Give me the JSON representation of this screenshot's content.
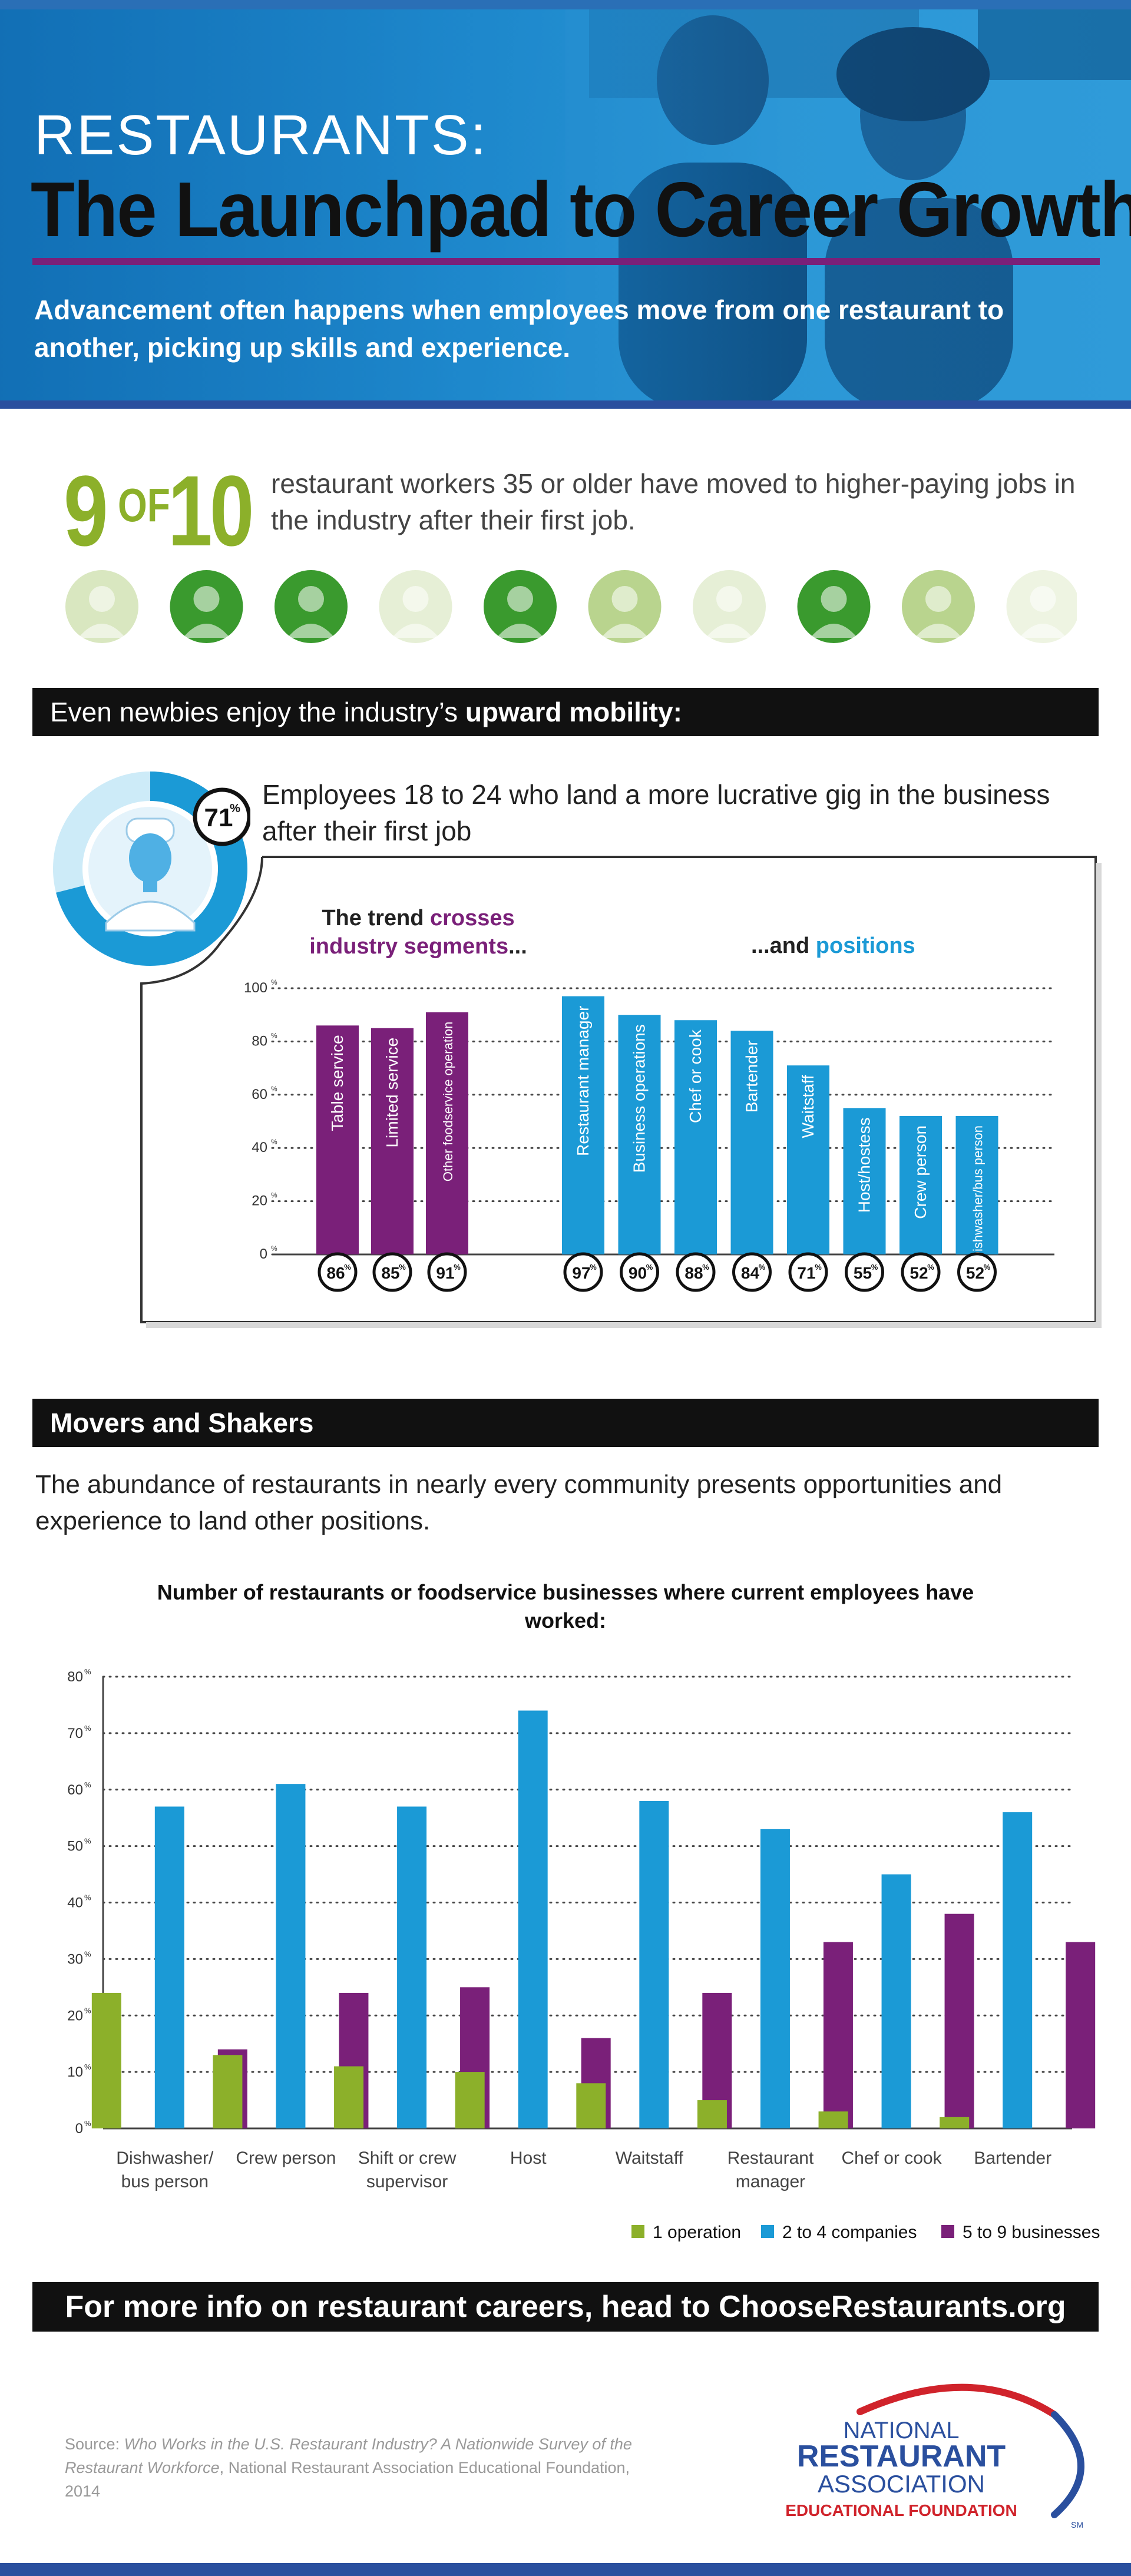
{
  "hero": {
    "pre_title": "RESTAURANTS:",
    "title": "The Launchpad to Career Growth",
    "subtitle": "Advancement often happens when employees move from one restaurant to another, picking up skills and experience."
  },
  "stat_nine": {
    "big1": "9",
    "of": "OF",
    "big2": "10",
    "text": "restaurant workers 35 or older have moved to higher-paying jobs in the industry after their first job.",
    "avatar_count": 10
  },
  "section1": {
    "header_plain": "Even newbies enjoy the industry’s ",
    "header_bold": "upward mobility:",
    "donut_value": 71,
    "donut_label": "71",
    "donut_unit": "%",
    "text": "Employees 18 to 24 who land a more lucrative gig in the business after their first job",
    "trend_left_pre": "The trend ",
    "trend_left_hl": "crosses",
    "trend_left_hl2": "industry segments",
    "trend_left_post": "...",
    "trend_right_pre": "...and ",
    "trend_right_hl": "positions"
  },
  "section2": {
    "header": "Movers and Shakers",
    "text": "The abundance of restaurants in nearly every community presents opportunities and experience to land other positions.",
    "chart_title": "Number of restaurants or foodservice businesses where current employees have worked:"
  },
  "footer": {
    "cta": "For more info on restaurant careers, head to ChooseRestaurants.org",
    "source_pre": "Source: ",
    "source_title": "Who Works in the U.S. Restaurant Industry? A Nationwide Survey of the Restaurant Workforce",
    "source_post": ", National Restaurant Association Educational Foundation, 2014",
    "logo_line1": "NATIONAL",
    "logo_line2": "RESTAURANT",
    "logo_line3": "ASSOCIATION",
    "logo_line4": "EDUCATIONAL FOUNDATION",
    "logo_sm": "SM"
  },
  "colors": {
    "green": "#8cb02a",
    "blue": "#1b9ad6",
    "purple": "#7a2079",
    "dark": "#111111"
  },
  "chart_data": [
    {
      "type": "bar",
      "unit": "%",
      "ylim": [
        0,
        100
      ],
      "yticks": [
        0,
        20,
        40,
        60,
        80,
        100
      ],
      "grid": true,
      "groups": [
        {
          "name": "industry segments",
          "color": "#7a2079",
          "categories": [
            "Table service",
            "Limited service",
            "Other foodservice operation"
          ],
          "values": [
            86,
            85,
            91
          ]
        },
        {
          "name": "positions",
          "color": "#1b9ad6",
          "categories": [
            "Restaurant manager",
            "Business operations",
            "Chef or cook",
            "Bartender",
            "Waitstaff",
            "Host/hostess",
            "Crew person",
            "Dishwasher/bus person"
          ],
          "values": [
            97,
            90,
            88,
            84,
            71,
            55,
            52,
            52
          ]
        }
      ]
    },
    {
      "type": "bar",
      "title": "Number of restaurants or foodservice businesses where current employees have worked:",
      "unit": "%",
      "ylim": [
        0,
        80
      ],
      "yticks": [
        0,
        10,
        20,
        30,
        40,
        50,
        60,
        70,
        80
      ],
      "grid": true,
      "legend": "bottom-right",
      "categories": [
        [
          "Dishwasher/",
          "bus person"
        ],
        [
          "Crew person"
        ],
        [
          "Shift or crew",
          "supervisor"
        ],
        [
          "Host"
        ],
        [
          "Waitstaff"
        ],
        [
          "Restaurant",
          "manager"
        ],
        [
          "Chef or cook"
        ],
        [
          "Bartender"
        ]
      ],
      "series": [
        {
          "name": "1 operation",
          "color": "#8cb02a",
          "values": [
            24,
            13,
            11,
            10,
            8,
            5,
            3,
            2
          ]
        },
        {
          "name": "2 to 4 companies",
          "color": "#1b9ad6",
          "values": [
            57,
            61,
            57,
            74,
            58,
            53,
            45,
            56
          ]
        },
        {
          "name": "5 to 9 businesses",
          "color": "#7a2079",
          "values": [
            14,
            24,
            25,
            16,
            24,
            33,
            38,
            33
          ]
        }
      ]
    }
  ]
}
